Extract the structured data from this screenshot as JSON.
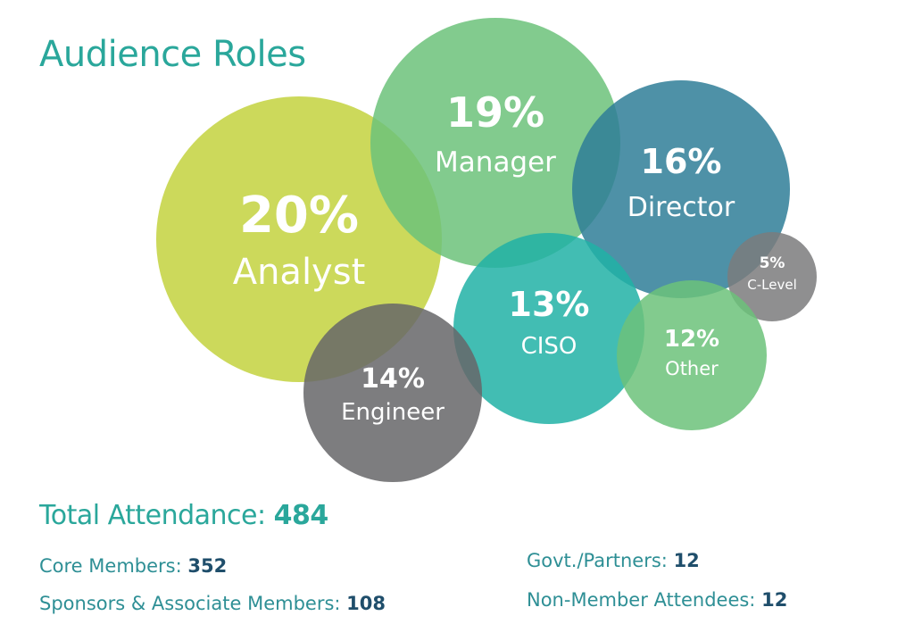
{
  "title": "Audience Roles",
  "chart_data": {
    "type": "bubble",
    "unit": "%",
    "bubbles": [
      {
        "label": "Analyst",
        "value": 20,
        "color": "#c3d23e"
      },
      {
        "label": "Manager",
        "value": 19,
        "color": "#6cc27a"
      },
      {
        "label": "Director",
        "value": 16,
        "color": "#2f7e98"
      },
      {
        "label": "C-Level",
        "value": 5,
        "color": "#7b7b7d"
      },
      {
        "label": "CISO",
        "value": 13,
        "color": "#21b1a6"
      },
      {
        "label": "Other",
        "value": 12,
        "color": "#6cc27a"
      },
      {
        "label": "Engineer",
        "value": 14,
        "color": "#666668"
      }
    ]
  },
  "total": {
    "label": "Total Attendance:",
    "value": "484"
  },
  "stats": [
    {
      "label": "Core Members:",
      "value": "352"
    },
    {
      "label": "Sponsors & Associate Members:",
      "value": "108"
    },
    {
      "label": "Govt./Partners:",
      "value": "12"
    },
    {
      "label": "Non-Member Attendees:",
      "value": "12"
    }
  ]
}
